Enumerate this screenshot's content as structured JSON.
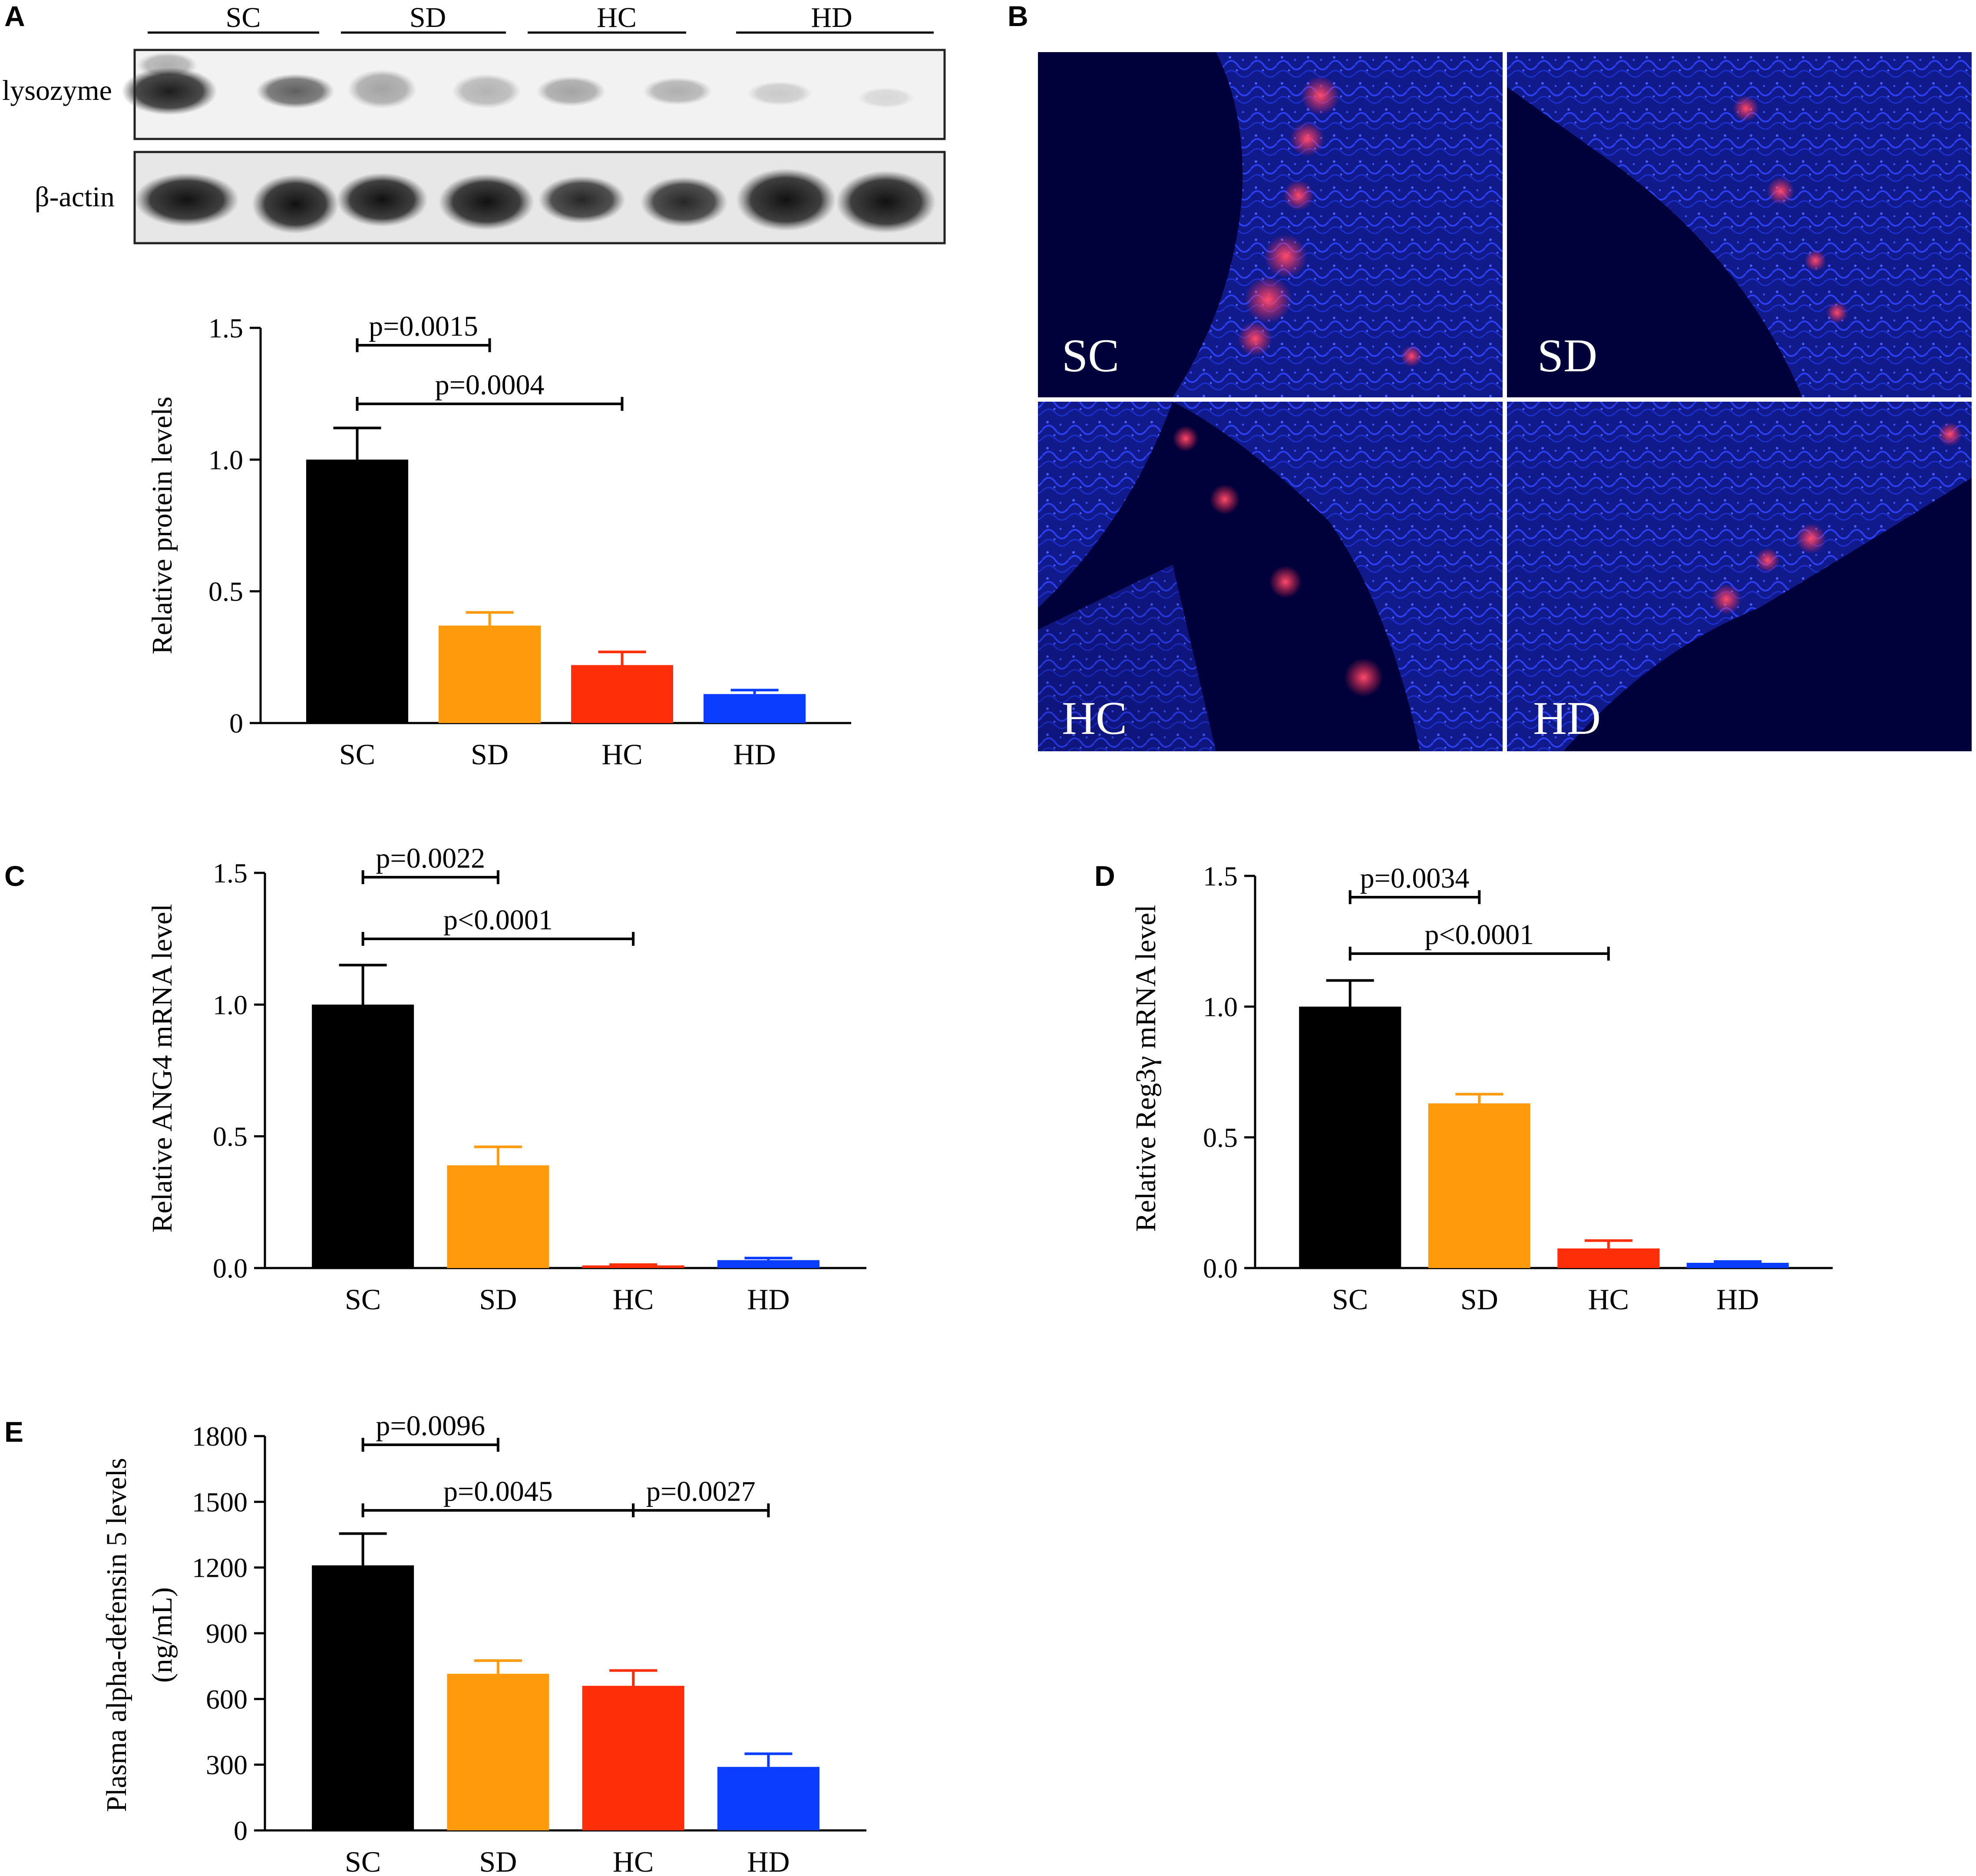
{
  "colors": {
    "SC": "#000000",
    "SD": "#ff9a0d",
    "HC": "#ff2e0a",
    "HD": "#0a3dff"
  },
  "panels": {
    "A": "A",
    "B": "B",
    "C": "C",
    "D": "D",
    "E": "E"
  },
  "blot": {
    "groups": [
      "SC",
      "SD",
      "HC",
      "HD"
    ],
    "rows": [
      "lysozyme",
      "β-actin"
    ]
  },
  "micrograph": {
    "labels": [
      "SC",
      "SD",
      "HC",
      "HD"
    ]
  },
  "chart_data": [
    {
      "id": "A",
      "type": "bar",
      "categories": [
        "SC",
        "SD",
        "HC",
        "HD"
      ],
      "values": [
        1.0,
        0.37,
        0.22,
        0.11
      ],
      "errors": [
        0.12,
        0.05,
        0.05,
        0.015
      ],
      "ylabel": "Relative protein levels",
      "ylim": [
        0,
        1.5
      ],
      "yticks": [
        "0",
        "0.5",
        "1.0",
        "1.5"
      ],
      "ytick_values": [
        0,
        0.5,
        1.0,
        1.5
      ],
      "comparisons": [
        {
          "from": "SC",
          "to": "SD",
          "label": "p=0.0015"
        },
        {
          "from": "SC",
          "to": "HC",
          "label": "p=0.0004"
        }
      ]
    },
    {
      "id": "C",
      "type": "bar",
      "categories": [
        "SC",
        "SD",
        "HC",
        "HD"
      ],
      "values": [
        1.0,
        0.39,
        0.01,
        0.03
      ],
      "errors": [
        0.15,
        0.07,
        0.003,
        0.008
      ],
      "ylabel": "Relative ANG4 mRNA level",
      "ylim": [
        0,
        1.5
      ],
      "yticks": [
        "0.0",
        "0.5",
        "1.0",
        "1.5"
      ],
      "ytick_values": [
        0,
        0.5,
        1.0,
        1.5
      ],
      "comparisons": [
        {
          "from": "SC",
          "to": "SD",
          "label": "p=0.0022"
        },
        {
          "from": "SC",
          "to": "HC",
          "label": "p<0.0001"
        }
      ]
    },
    {
      "id": "D",
      "type": "bar",
      "categories": [
        "SC",
        "SD",
        "HC",
        "HD"
      ],
      "values": [
        1.0,
        0.63,
        0.075,
        0.02
      ],
      "errors": [
        0.1,
        0.035,
        0.03,
        0.005
      ],
      "ylabel": "Relative Reg3γ mRNA level",
      "ylim": [
        0,
        1.5
      ],
      "yticks": [
        "0.0",
        "0.5",
        "1.0",
        "1.5"
      ],
      "ytick_values": [
        0,
        0.5,
        1.0,
        1.5
      ],
      "comparisons": [
        {
          "from": "SC",
          "to": "SD",
          "label": "p=0.0034"
        },
        {
          "from": "SC",
          "to": "HC",
          "label": "p<0.0001"
        }
      ]
    },
    {
      "id": "E",
      "type": "bar",
      "categories": [
        "SC",
        "SD",
        "HC",
        "HD"
      ],
      "values": [
        1210,
        715,
        660,
        290
      ],
      "errors": [
        145,
        60,
        70,
        60
      ],
      "ylabel": "Plasma alpha-defensin 5 levels",
      "ylabel2": "(ng/mL)",
      "ylim": [
        0,
        1800
      ],
      "yticks": [
        "0",
        "300",
        "600",
        "900",
        "1200",
        "1500",
        "1800"
      ],
      "ytick_values": [
        0,
        300,
        600,
        900,
        1200,
        1500,
        1800
      ],
      "comparisons": [
        {
          "from": "SC",
          "to": "SD",
          "label": "p=0.0096"
        },
        {
          "from": "SC",
          "to": "HC",
          "label": "p=0.0045"
        },
        {
          "from": "HC",
          "to": "HD",
          "label": "p=0.0027"
        }
      ]
    }
  ]
}
